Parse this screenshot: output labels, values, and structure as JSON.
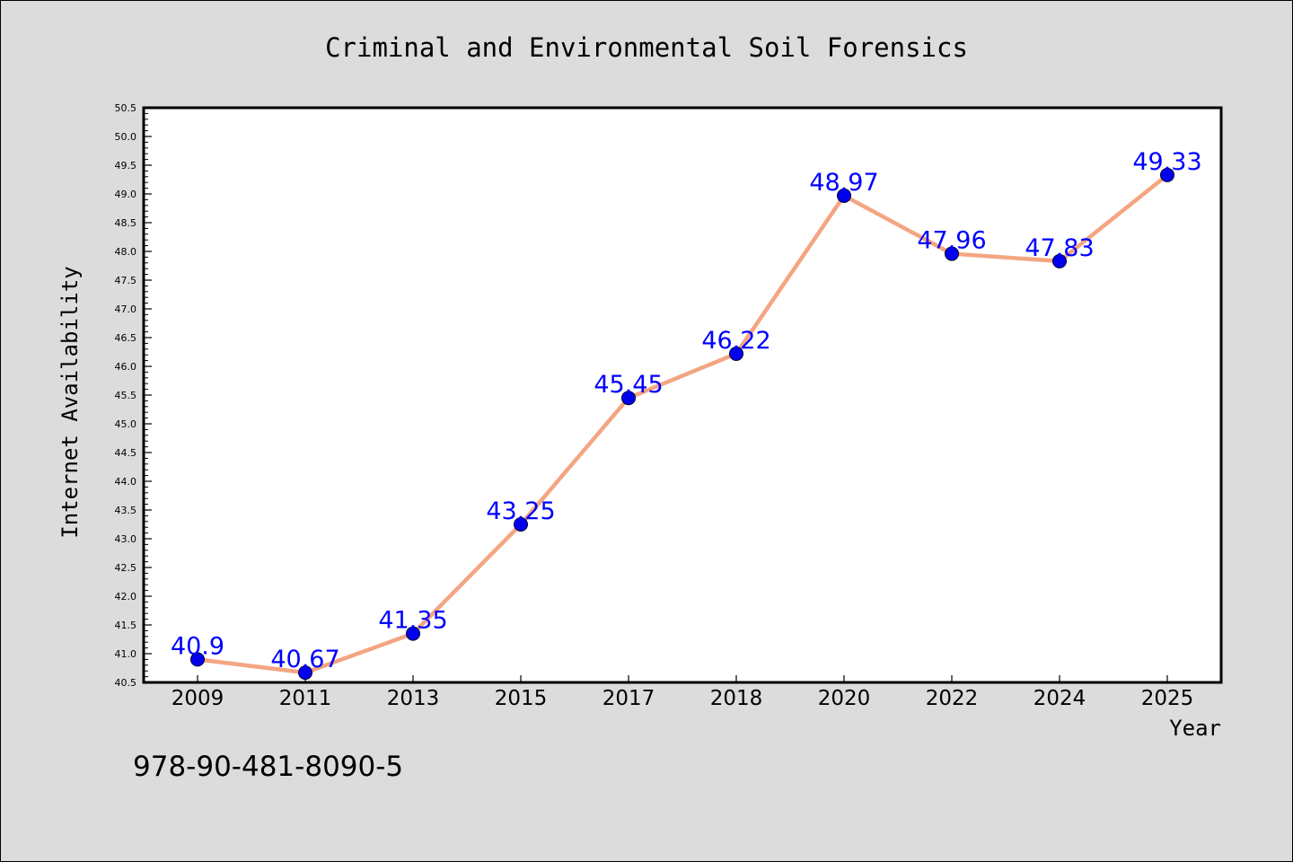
{
  "chart_data": {
    "type": "line",
    "title": "Criminal and Environmental Soil Forensics",
    "xlabel": "Year",
    "ylabel": "Internet Availability",
    "categories": [
      "2009",
      "2011",
      "2013",
      "2015",
      "2017",
      "2018",
      "2020",
      "2022",
      "2024",
      "2025"
    ],
    "series": [
      {
        "values": [
          40.9,
          40.67,
          41.35,
          43.25,
          45.45,
          46.22,
          48.97,
          47.96,
          47.83,
          49.33
        ],
        "data_labels": [
          "40.9",
          "40.67",
          "41.35",
          "43.25",
          "45.45",
          "46.22",
          "48.97",
          "47.96",
          "47.83",
          "49.33"
        ]
      }
    ],
    "ylim": [
      40.5,
      50.5
    ],
    "yticks": [
      "40.5",
      "41.0",
      "41.5",
      "42.0",
      "42.5",
      "43.0",
      "43.5",
      "44.0",
      "44.5",
      "45.0",
      "45.5",
      "46.0",
      "46.5",
      "47.0",
      "47.5",
      "48.0",
      "48.5",
      "49.0",
      "49.5",
      "50.0",
      "50.5"
    ],
    "grid": false,
    "legend": "none",
    "colors": {
      "line": "#f4a582",
      "marker": "#0000ee",
      "data_label": "#0000ff",
      "background": "#dcdcdc",
      "plot_background": "#ffffff"
    }
  },
  "footer": {
    "isbn": "978-90-481-8090-5"
  }
}
